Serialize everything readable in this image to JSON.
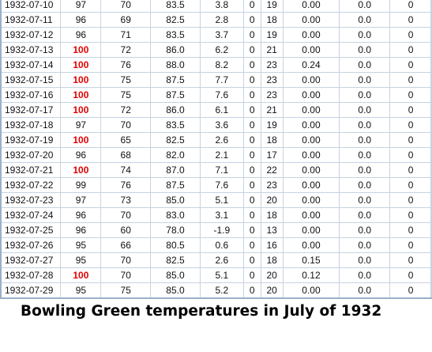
{
  "caption": "Bowling Green temperatures in July of 1932",
  "colors": {
    "hot": "#e00000",
    "grid_line": "#c6d3e2"
  },
  "rows": [
    [
      "1932-07-10",
      "97",
      "70",
      "83.5",
      "3.8",
      "0",
      "19",
      "0.00",
      "0.0",
      "0"
    ],
    [
      "1932-07-11",
      "96",
      "69",
      "82.5",
      "2.8",
      "0",
      "18",
      "0.00",
      "0.0",
      "0"
    ],
    [
      "1932-07-12",
      "96",
      "71",
      "83.5",
      "3.7",
      "0",
      "19",
      "0.00",
      "0.0",
      "0"
    ],
    [
      "1932-07-13",
      "100",
      "72",
      "86.0",
      "6.2",
      "0",
      "21",
      "0.00",
      "0.0",
      "0"
    ],
    [
      "1932-07-14",
      "100",
      "76",
      "88.0",
      "8.2",
      "0",
      "23",
      "0.24",
      "0.0",
      "0"
    ],
    [
      "1932-07-15",
      "100",
      "75",
      "87.5",
      "7.7",
      "0",
      "23",
      "0.00",
      "0.0",
      "0"
    ],
    [
      "1932-07-16",
      "100",
      "75",
      "87.5",
      "7.6",
      "0",
      "23",
      "0.00",
      "0.0",
      "0"
    ],
    [
      "1932-07-17",
      "100",
      "72",
      "86.0",
      "6.1",
      "0",
      "21",
      "0.00",
      "0.0",
      "0"
    ],
    [
      "1932-07-18",
      "97",
      "70",
      "83.5",
      "3.6",
      "0",
      "19",
      "0.00",
      "0.0",
      "0"
    ],
    [
      "1932-07-19",
      "100",
      "65",
      "82.5",
      "2.6",
      "0",
      "18",
      "0.00",
      "0.0",
      "0"
    ],
    [
      "1932-07-20",
      "96",
      "68",
      "82.0",
      "2.1",
      "0",
      "17",
      "0.00",
      "0.0",
      "0"
    ],
    [
      "1932-07-21",
      "100",
      "74",
      "87.0",
      "7.1",
      "0",
      "22",
      "0.00",
      "0.0",
      "0"
    ],
    [
      "1932-07-22",
      "99",
      "76",
      "87.5",
      "7.6",
      "0",
      "23",
      "0.00",
      "0.0",
      "0"
    ],
    [
      "1932-07-23",
      "97",
      "73",
      "85.0",
      "5.1",
      "0",
      "20",
      "0.00",
      "0.0",
      "0"
    ],
    [
      "1932-07-24",
      "96",
      "70",
      "83.0",
      "3.1",
      "0",
      "18",
      "0.00",
      "0.0",
      "0"
    ],
    [
      "1932-07-25",
      "96",
      "60",
      "78.0",
      "-1.9",
      "0",
      "13",
      "0.00",
      "0.0",
      "0"
    ],
    [
      "1932-07-26",
      "95",
      "66",
      "80.5",
      "0.6",
      "0",
      "16",
      "0.00",
      "0.0",
      "0"
    ],
    [
      "1932-07-27",
      "95",
      "70",
      "82.5",
      "2.6",
      "0",
      "18",
      "0.15",
      "0.0",
      "0"
    ],
    [
      "1932-07-28",
      "100",
      "70",
      "85.0",
      "5.1",
      "0",
      "20",
      "0.12",
      "0.0",
      "0"
    ],
    [
      "1932-07-29",
      "95",
      "75",
      "85.0",
      "5.2",
      "0",
      "20",
      "0.00",
      "0.0",
      "0"
    ]
  ],
  "highlight_value": "100"
}
